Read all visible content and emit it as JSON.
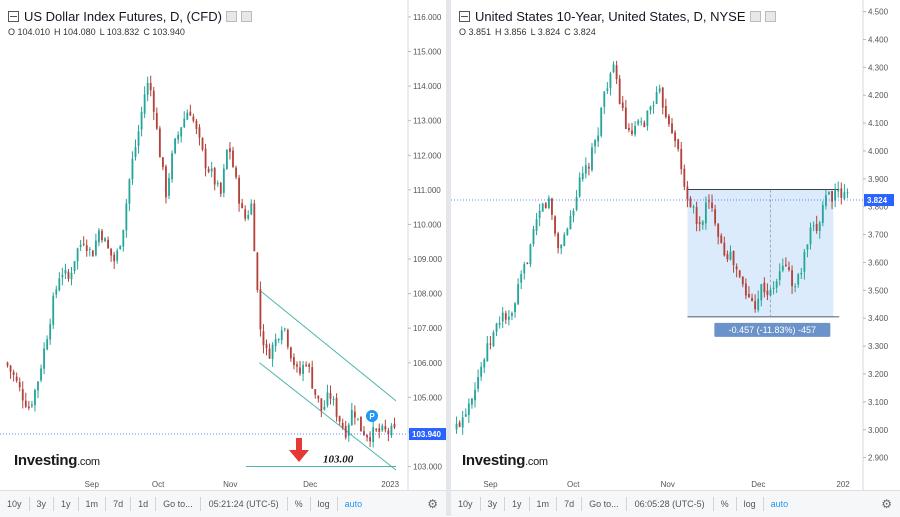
{
  "panels": [
    {
      "title": "US Dollar Index Futures, D, (CFD)",
      "ohlc": {
        "o": "O 104.010",
        "h": "H 104.080",
        "l": "L 103.832",
        "c": "C 103.940"
      },
      "logo": "Investing",
      "logo_suffix": ".com",
      "last_price": "103.940",
      "target_label": "103.00",
      "marker_label": "P",
      "toolbar": {
        "buttons": [
          "10y",
          "3y",
          "1y",
          "1m",
          "7d",
          "1d",
          "Go to..."
        ],
        "time": "05:21:24 (UTC-5)",
        "right": [
          "%",
          "log",
          "auto"
        ]
      }
    },
    {
      "title": "United States 10-Year, United States, D, NYSE",
      "ohlc": {
        "o": "O 3.851",
        "h": "H 3.856",
        "l": "L 3.824",
        "c": "C 3.824"
      },
      "logo": "Investing",
      "logo_suffix": ".com",
      "last_price": "3.824",
      "range_label": "-0.457 (-11.83%) -457",
      "toolbar": {
        "buttons": [
          "10y",
          "3y",
          "1y",
          "1m",
          "7d",
          "Go to..."
        ],
        "time": "06:05:28 (UTC-5)",
        "right": [
          "%",
          "log",
          "auto"
        ]
      }
    }
  ],
  "chart_data": [
    {
      "type": "candlestick",
      "title": "US Dollar Index Futures, D, (CFD)",
      "y_ticks": [
        "103.000",
        "104.000",
        "105.000",
        "106.000",
        "107.000",
        "108.000",
        "109.000",
        "110.000",
        "111.000",
        "112.000",
        "113.000",
        "114.000",
        "115.000",
        "116.000"
      ],
      "ylim": [
        102.9,
        116.2
      ],
      "x_ticks": [
        {
          "label": "Sep",
          "x": 0.22
        },
        {
          "label": "Oct",
          "x": 0.39
        },
        {
          "label": "Nov",
          "x": 0.575
        },
        {
          "label": "Dec",
          "x": 0.78
        },
        {
          "label": "2023",
          "x": 0.985
        }
      ],
      "last_value": 103.94,
      "target_value": 103.0,
      "close_path": [
        [
          0.0,
          106.0
        ],
        [
          0.02,
          105.6
        ],
        [
          0.04,
          105.1
        ],
        [
          0.06,
          104.7
        ],
        [
          0.08,
          105.4
        ],
        [
          0.1,
          106.5
        ],
        [
          0.12,
          107.7
        ],
        [
          0.14,
          108.7
        ],
        [
          0.16,
          108.4
        ],
        [
          0.18,
          109.2
        ],
        [
          0.2,
          109.6
        ],
        [
          0.22,
          109.1
        ],
        [
          0.24,
          109.9
        ],
        [
          0.26,
          109.3
        ],
        [
          0.28,
          108.9
        ],
        [
          0.3,
          109.9
        ],
        [
          0.32,
          111.6
        ],
        [
          0.34,
          112.7
        ],
        [
          0.36,
          114.1
        ],
        [
          0.375,
          113.8
        ],
        [
          0.39,
          112.4
        ],
        [
          0.41,
          110.9
        ],
        [
          0.43,
          112.2
        ],
        [
          0.45,
          112.9
        ],
        [
          0.47,
          113.4
        ],
        [
          0.49,
          112.6
        ],
        [
          0.51,
          111.8
        ],
        [
          0.53,
          111.4
        ],
        [
          0.55,
          110.8
        ],
        [
          0.57,
          112.4
        ],
        [
          0.59,
          111.2
        ],
        [
          0.61,
          110.1
        ],
        [
          0.63,
          110.6
        ],
        [
          0.65,
          107.1
        ],
        [
          0.67,
          106.2
        ],
        [
          0.69,
          106.6
        ],
        [
          0.71,
          107.2
        ],
        [
          0.73,
          106.3
        ],
        [
          0.75,
          105.6
        ],
        [
          0.77,
          106.1
        ],
        [
          0.79,
          105.2
        ],
        [
          0.81,
          104.6
        ],
        [
          0.83,
          105.1
        ],
        [
          0.85,
          104.5
        ],
        [
          0.87,
          104.0
        ],
        [
          0.89,
          104.7
        ],
        [
          0.91,
          104.1
        ],
        [
          0.93,
          103.9
        ],
        [
          0.95,
          104.0
        ]
      ],
      "channel": {
        "upper": [
          [
            0.65,
            108.1
          ],
          [
            1.0,
            104.9
          ]
        ],
        "lower": [
          [
            0.65,
            106.0
          ],
          [
            1.0,
            102.9
          ]
        ]
      }
    },
    {
      "type": "candlestick",
      "title": "United States 10-Year, United States, D, NYSE",
      "y_ticks": [
        "2.900",
        "3.000",
        "3.100",
        "3.200",
        "3.300",
        "3.400",
        "3.500",
        "3.600",
        "3.700",
        "3.800",
        "3.900",
        "4.000",
        "4.100",
        "4.200",
        "4.300",
        "4.400",
        "4.500"
      ],
      "ylim": [
        2.87,
        4.52
      ],
      "x_ticks": [
        {
          "label": "Sep",
          "x": 0.09
        },
        {
          "label": "Oct",
          "x": 0.3
        },
        {
          "label": "Nov",
          "x": 0.54
        },
        {
          "label": "Dec",
          "x": 0.77
        },
        {
          "label": "202",
          "x": 0.985
        }
      ],
      "last_value": 3.824,
      "range": {
        "from": 3.862,
        "to": 3.405,
        "change": -0.457,
        "change_pct": -11.83
      },
      "close_path": [
        [
          0.0,
          3.0
        ],
        [
          0.02,
          3.05
        ],
        [
          0.04,
          3.12
        ],
        [
          0.06,
          3.2
        ],
        [
          0.08,
          3.28
        ],
        [
          0.1,
          3.35
        ],
        [
          0.12,
          3.42
        ],
        [
          0.14,
          3.38
        ],
        [
          0.16,
          3.5
        ],
        [
          0.18,
          3.6
        ],
        [
          0.2,
          3.7
        ],
        [
          0.22,
          3.8
        ],
        [
          0.24,
          3.82
        ],
        [
          0.26,
          3.65
        ],
        [
          0.28,
          3.7
        ],
        [
          0.3,
          3.8
        ],
        [
          0.32,
          3.9
        ],
        [
          0.34,
          3.95
        ],
        [
          0.36,
          4.05
        ],
        [
          0.38,
          4.22
        ],
        [
          0.4,
          4.3
        ],
        [
          0.42,
          4.18
        ],
        [
          0.44,
          4.05
        ],
        [
          0.46,
          4.08
        ],
        [
          0.48,
          4.1
        ],
        [
          0.5,
          4.18
        ],
        [
          0.52,
          4.2
        ],
        [
          0.54,
          4.12
        ],
        [
          0.56,
          4.05
        ],
        [
          0.58,
          3.88
        ],
        [
          0.6,
          3.8
        ],
        [
          0.62,
          3.72
        ],
        [
          0.64,
          3.82
        ],
        [
          0.66,
          3.76
        ],
        [
          0.68,
          3.65
        ],
        [
          0.7,
          3.62
        ],
        [
          0.72,
          3.55
        ],
        [
          0.74,
          3.48
        ],
        [
          0.76,
          3.45
        ],
        [
          0.78,
          3.52
        ],
        [
          0.8,
          3.48
        ],
        [
          0.82,
          3.55
        ],
        [
          0.84,
          3.6
        ],
        [
          0.86,
          3.5
        ],
        [
          0.88,
          3.58
        ],
        [
          0.9,
          3.7
        ],
        [
          0.92,
          3.72
        ],
        [
          0.94,
          3.85
        ],
        [
          0.96,
          3.84
        ]
      ],
      "box": {
        "x0": 0.59,
        "x1": 0.96,
        "y0": 3.862,
        "y1": 3.405
      }
    }
  ],
  "colors": {
    "up": "#26a69a",
    "down": "#b3423b",
    "channel": "#4db6ac",
    "range_fill": "#dcebfb",
    "range_tag": "#6b93c9",
    "last_tag": "#2962ff",
    "arrow": "#e53935",
    "dotted": "#2962ff"
  }
}
